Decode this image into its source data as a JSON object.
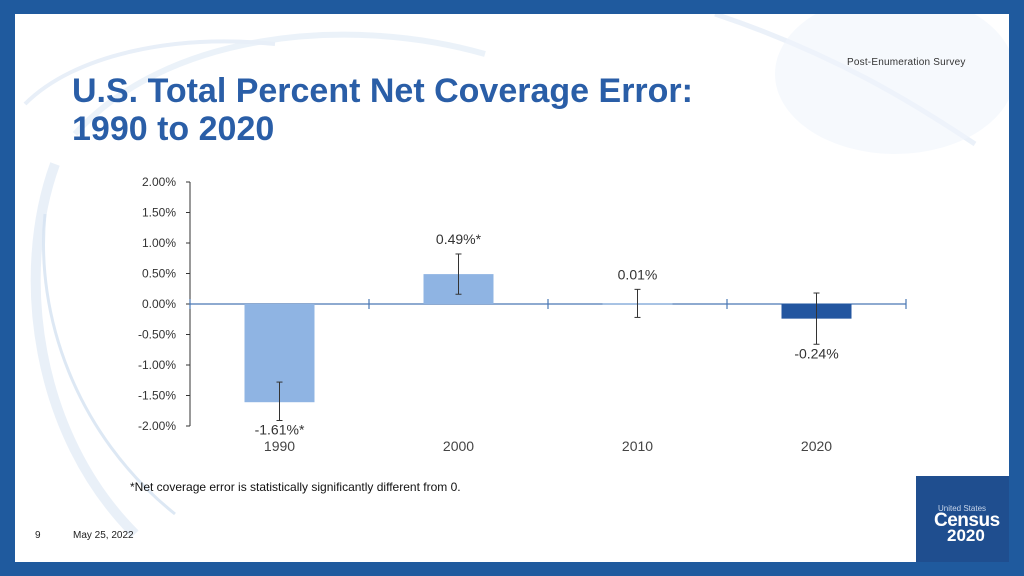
{
  "header": {
    "program": "Post-Enumeration   Survey",
    "title_line1": "U.S. Total Percent Net Coverage Error:",
    "title_line2": "1990 to 2020"
  },
  "colors": {
    "frame": "#1f5a9e",
    "title": "#2a5ea7",
    "bar_light": "#8fb4e3",
    "bar_dark": "#2356a0",
    "axis": "#4a77b4"
  },
  "chart_data": {
    "type": "bar",
    "title": "U.S. Total Percent Net Coverage Error: 1990 to 2020",
    "xlabel": "",
    "ylabel": "",
    "categories": [
      "1990",
      "2000",
      "2010",
      "2020"
    ],
    "values": [
      -1.61,
      0.49,
      0.01,
      -0.24
    ],
    "error_low": [
      -1.91,
      0.16,
      -0.22,
      -0.66
    ],
    "error_high": [
      -1.28,
      0.82,
      0.24,
      0.18
    ],
    "labels": [
      "-1.61%*",
      "0.49%*",
      "0.01%",
      "-0.24%"
    ],
    "ylim": [
      -2.0,
      2.0
    ],
    "yticks": [
      "2.00%",
      "1.50%",
      "1.00%",
      "0.50%",
      "0.00%",
      "-0.50%",
      "-1.00%",
      "-1.50%",
      "-2.00%"
    ],
    "ytick_values": [
      2.0,
      1.5,
      1.0,
      0.5,
      0.0,
      -0.5,
      -1.0,
      -1.5,
      -2.0
    ],
    "grid": false
  },
  "footnote": "*Net coverage error is statistically significantly different from 0.",
  "footer": {
    "page": "9",
    "date": "May 25, 2022"
  },
  "logo": {
    "line1": "United States",
    "line2": "Census",
    "line3": "2020"
  }
}
